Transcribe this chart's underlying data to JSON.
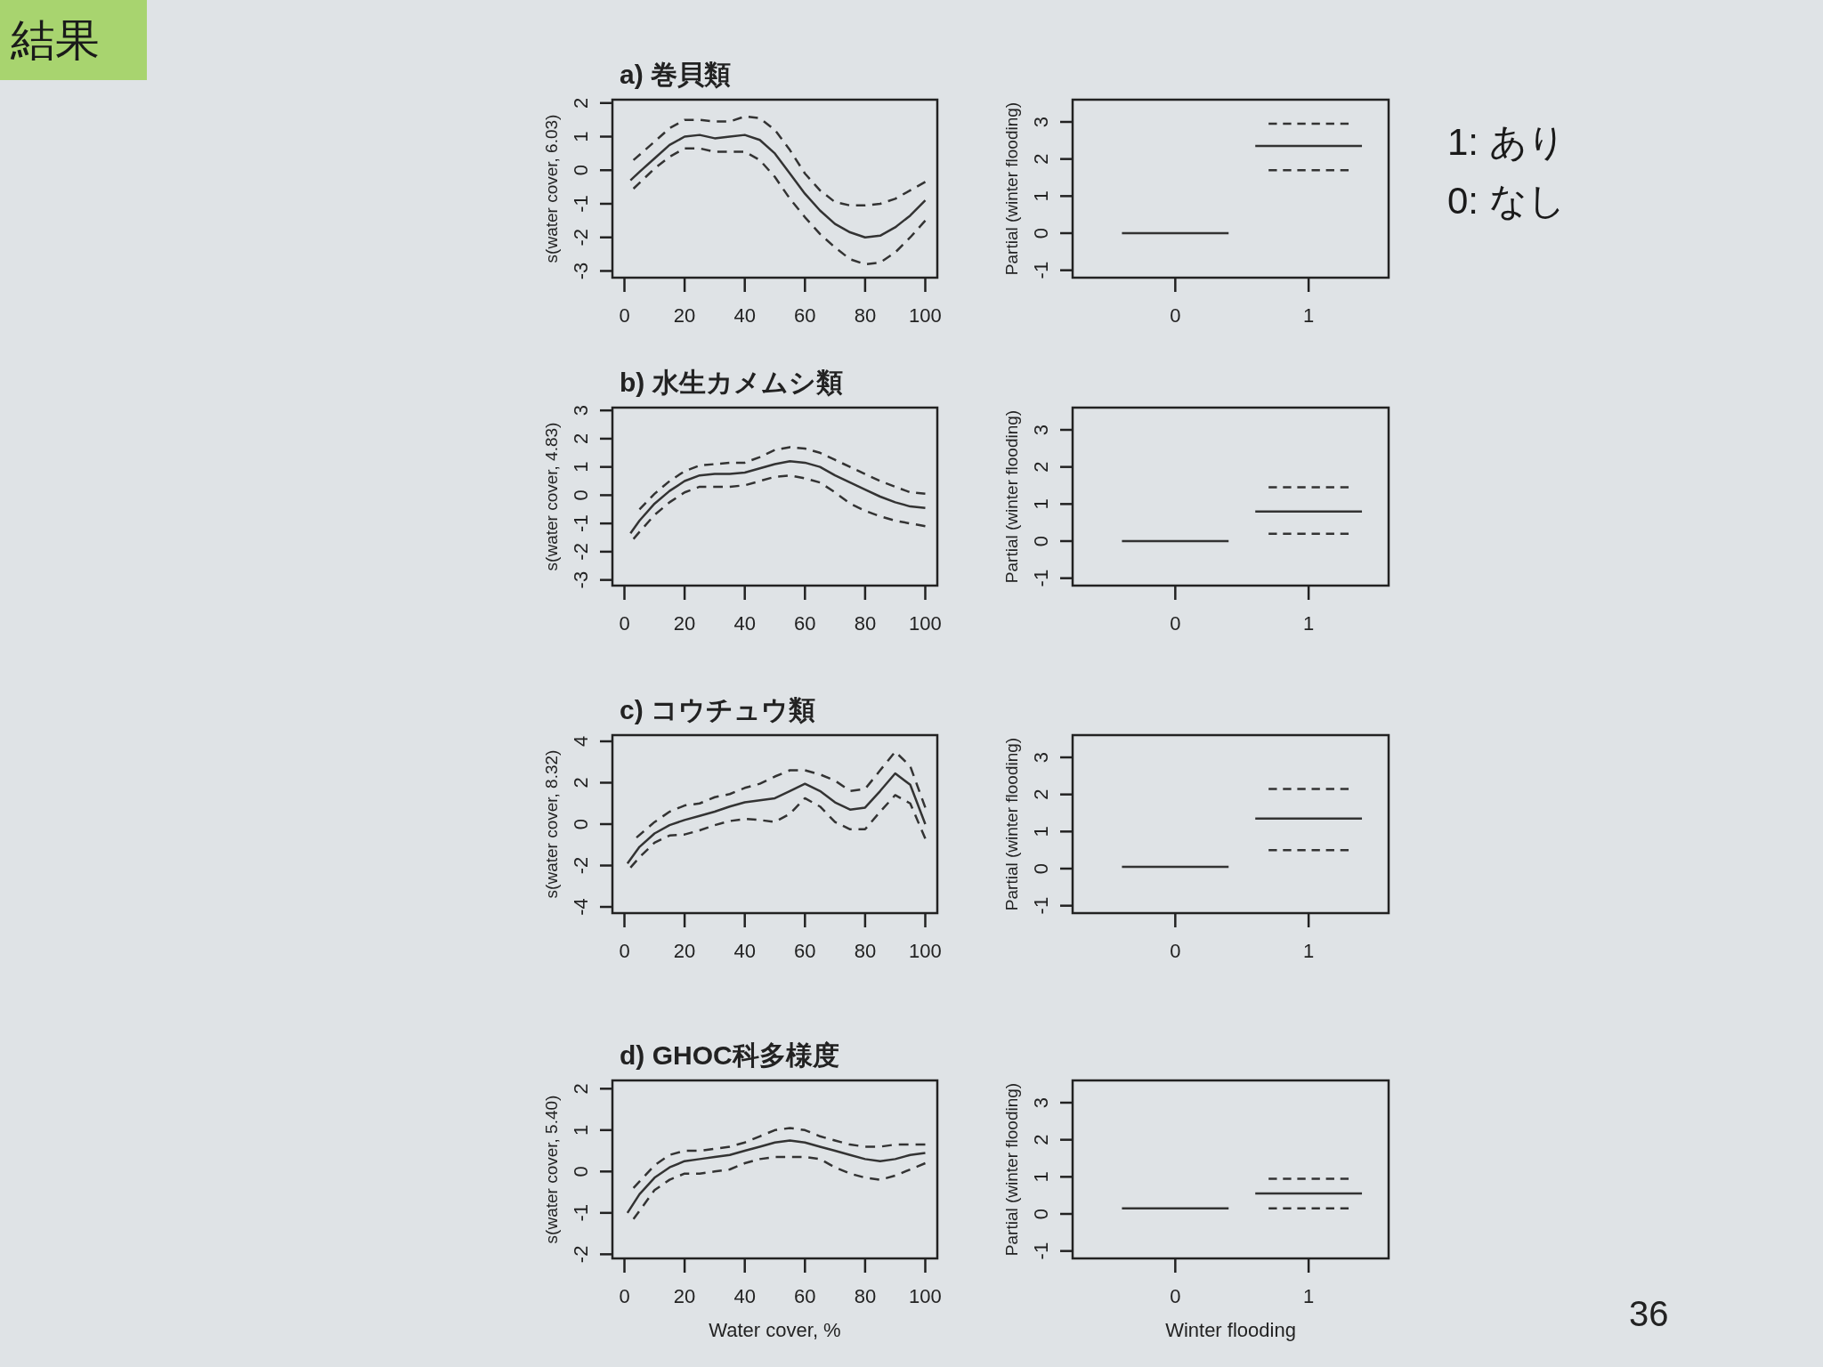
{
  "chart_data": [
    {
      "type": "line",
      "title": "a) 巻貝類",
      "ylabel": "s(water cover, 6.03)",
      "xlim": [
        -4,
        104
      ],
      "ylim": [
        -3.2,
        2.1
      ],
      "xticks": [
        0,
        20,
        40,
        60,
        80,
        100
      ],
      "yticks": [
        -3,
        -2,
        -1,
        0,
        1,
        2
      ],
      "annotations": [
        "結果"
      ],
      "series": [
        {
          "color": "#333333",
          "line_style": "solid",
          "x": [
            2,
            5,
            10,
            15,
            20,
            25,
            30,
            35,
            40,
            45,
            50,
            55,
            60,
            65,
            70,
            75,
            80,
            85,
            90,
            95,
            100
          ],
          "values": [
            -0.3,
            -0.05,
            0.35,
            0.75,
            1.0,
            1.05,
            0.95,
            1.0,
            1.05,
            0.9,
            0.5,
            -0.1,
            -0.7,
            -1.2,
            -1.6,
            -1.85,
            -2.0,
            -1.95,
            -1.7,
            -1.35,
            -0.9
          ]
        },
        {
          "color": "#333333",
          "line_style": "dashed",
          "x": [
            3,
            10,
            15,
            20,
            25,
            30,
            35,
            40,
            45,
            50,
            55,
            60,
            65,
            70,
            75,
            80,
            85,
            90,
            95,
            100
          ],
          "values": [
            0.3,
            0.85,
            1.25,
            1.5,
            1.5,
            1.45,
            1.45,
            1.6,
            1.55,
            1.2,
            0.6,
            -0.1,
            -0.6,
            -0.95,
            -1.05,
            -1.05,
            -1.0,
            -0.85,
            -0.6,
            -0.35
          ]
        },
        {
          "color": "#333333",
          "line_style": "dashed",
          "x": [
            3,
            10,
            15,
            20,
            25,
            30,
            35,
            40,
            45,
            50,
            55,
            60,
            65,
            70,
            75,
            80,
            85,
            90,
            95,
            100
          ],
          "values": [
            -0.55,
            0.05,
            0.4,
            0.65,
            0.65,
            0.55,
            0.55,
            0.55,
            0.3,
            -0.2,
            -0.85,
            -1.4,
            -1.9,
            -2.3,
            -2.65,
            -2.8,
            -2.75,
            -2.45,
            -2.0,
            -1.5
          ]
        }
      ]
    },
    {
      "type": "line",
      "ylabel": "Partial (winter flooding)",
      "xlim": [
        -0.77,
        1.6
      ],
      "xticks": [
        0,
        1
      ],
      "ylim": [
        -1.2,
        3.6
      ],
      "yticks": [
        -1,
        0,
        1,
        2,
        3
      ],
      "series": [
        {
          "color": "#333333",
          "line_style": "solid",
          "x": [
            -0.4,
            0.4
          ],
          "values": [
            0,
            0
          ]
        },
        {
          "color": "#333333",
          "line_style": "solid",
          "x": [
            0.6,
            1.4
          ],
          "values": [
            2.35,
            2.35
          ]
        },
        {
          "color": "#333333",
          "line_style": "dashed",
          "x": [
            0.7,
            1.3
          ],
          "values": [
            2.95,
            2.95
          ]
        },
        {
          "color": "#333333",
          "line_style": "dashed",
          "x": [
            0.7,
            1.3
          ],
          "values": [
            1.7,
            1.7
          ]
        }
      ],
      "annotations": [
        "1: あり",
        "0: なし"
      ]
    },
    {
      "type": "line",
      "title": "b) 水生カメムシ類",
      "ylabel": "s(water cover, 4.83)",
      "xlim": [
        -4,
        104
      ],
      "ylim": [
        -3.2,
        3.1
      ],
      "xticks": [
        0,
        20,
        40,
        60,
        80,
        100
      ],
      "yticks": [
        -3,
        -2,
        -1,
        0,
        1,
        2,
        3
      ],
      "series": [
        {
          "color": "#333333",
          "line_style": "solid",
          "x": [
            2,
            5,
            10,
            15,
            20,
            25,
            30,
            35,
            40,
            45,
            50,
            55,
            60,
            65,
            70,
            75,
            80,
            85,
            90,
            95,
            100
          ],
          "values": [
            -1.35,
            -0.9,
            -0.3,
            0.15,
            0.5,
            0.7,
            0.75,
            0.75,
            0.8,
            0.95,
            1.1,
            1.2,
            1.15,
            1.0,
            0.7,
            0.45,
            0.2,
            -0.05,
            -0.25,
            -0.4,
            -0.45
          ]
        },
        {
          "color": "#333333",
          "line_style": "dashed",
          "x": [
            5,
            10,
            15,
            20,
            25,
            30,
            35,
            40,
            45,
            50,
            55,
            60,
            65,
            70,
            75,
            80,
            85,
            90,
            95,
            100
          ],
          "values": [
            -0.5,
            0.05,
            0.5,
            0.85,
            1.05,
            1.1,
            1.15,
            1.15,
            1.35,
            1.6,
            1.7,
            1.65,
            1.5,
            1.25,
            1.0,
            0.75,
            0.5,
            0.3,
            0.1,
            0.05
          ]
        },
        {
          "color": "#333333",
          "line_style": "dashed",
          "x": [
            3,
            5,
            10,
            15,
            20,
            25,
            30,
            35,
            40,
            45,
            50,
            55,
            60,
            65,
            70,
            75,
            80,
            85,
            90,
            95,
            100
          ],
          "values": [
            -1.55,
            -1.3,
            -0.7,
            -0.25,
            0.1,
            0.3,
            0.3,
            0.3,
            0.35,
            0.5,
            0.65,
            0.7,
            0.6,
            0.45,
            0.1,
            -0.3,
            -0.55,
            -0.75,
            -0.9,
            -1.0,
            -1.1
          ]
        }
      ]
    },
    {
      "type": "line",
      "ylabel": "Partial (winter flooding)",
      "xlim": [
        -0.77,
        1.6
      ],
      "xticks": [
        0,
        1
      ],
      "ylim": [
        -1.2,
        3.6
      ],
      "yticks": [
        -1,
        0,
        1,
        2,
        3
      ],
      "series": [
        {
          "color": "#333333",
          "line_style": "solid",
          "x": [
            -0.4,
            0.4
          ],
          "values": [
            0,
            0
          ]
        },
        {
          "color": "#333333",
          "line_style": "solid",
          "x": [
            0.6,
            1.4
          ],
          "values": [
            0.8,
            0.8
          ]
        },
        {
          "color": "#333333",
          "line_style": "dashed",
          "x": [
            0.7,
            1.3
          ],
          "values": [
            1.45,
            1.45
          ]
        },
        {
          "color": "#333333",
          "line_style": "dashed",
          "x": [
            0.7,
            1.3
          ],
          "values": [
            0.2,
            0.2
          ]
        }
      ]
    },
    {
      "type": "line",
      "title": "c) コウチュウ類",
      "ylabel": "s(water cover, 8.32)",
      "xlim": [
        -4,
        104
      ],
      "ylim": [
        -4.3,
        4.3
      ],
      "xticks": [
        0,
        20,
        40,
        60,
        80,
        100
      ],
      "yticks": [
        -4,
        -2,
        0,
        2,
        4
      ],
      "series": [
        {
          "color": "#333333",
          "line_style": "solid",
          "x": [
            1,
            5,
            10,
            15,
            20,
            25,
            30,
            35,
            40,
            45,
            50,
            55,
            60,
            65,
            70,
            75,
            80,
            85,
            90,
            95,
            100
          ],
          "values": [
            -1.9,
            -1.1,
            -0.45,
            -0.05,
            0.2,
            0.4,
            0.6,
            0.85,
            1.05,
            1.15,
            1.25,
            1.6,
            1.95,
            1.6,
            1.05,
            0.7,
            0.8,
            1.6,
            2.45,
            1.9,
            0
          ]
        },
        {
          "color": "#333333",
          "line_style": "dashed",
          "x": [
            4,
            10,
            15,
            20,
            25,
            30,
            35,
            40,
            45,
            50,
            55,
            60,
            65,
            70,
            75,
            80,
            85,
            90,
            95,
            100
          ],
          "values": [
            -0.65,
            0.1,
            0.6,
            0.9,
            1.0,
            1.3,
            1.45,
            1.75,
            1.95,
            2.3,
            2.6,
            2.6,
            2.4,
            2.1,
            1.6,
            1.7,
            2.6,
            3.5,
            2.8,
            0.8
          ]
        },
        {
          "color": "#333333",
          "line_style": "dashed",
          "x": [
            2,
            5,
            10,
            15,
            20,
            25,
            30,
            35,
            40,
            45,
            50,
            55,
            60,
            65,
            70,
            75,
            80,
            85,
            90,
            95,
            100
          ],
          "values": [
            -2.1,
            -1.6,
            -0.9,
            -0.55,
            -0.5,
            -0.3,
            -0.05,
            0.15,
            0.25,
            0.2,
            0.1,
            0.5,
            1.25,
            0.85,
            0.1,
            -0.25,
            -0.25,
            0.6,
            1.4,
            1.0,
            -0.7
          ]
        }
      ]
    },
    {
      "type": "line",
      "ylabel": "Partial (winter flooding)",
      "xlim": [
        -0.77,
        1.6
      ],
      "xticks": [
        0,
        1
      ],
      "ylim": [
        -1.2,
        3.6
      ],
      "yticks": [
        -1,
        0,
        1,
        2,
        3
      ],
      "series": [
        {
          "color": "#333333",
          "line_style": "solid",
          "x": [
            -0.4,
            0.4
          ],
          "values": [
            0.05,
            0.05
          ]
        },
        {
          "color": "#333333",
          "line_style": "solid",
          "x": [
            0.6,
            1.4
          ],
          "values": [
            1.35,
            1.35
          ]
        },
        {
          "color": "#333333",
          "line_style": "dashed",
          "x": [
            0.7,
            1.3
          ],
          "values": [
            2.15,
            2.15
          ]
        },
        {
          "color": "#333333",
          "line_style": "dashed",
          "x": [
            0.7,
            1.3
          ],
          "values": [
            0.5,
            0.5
          ]
        }
      ]
    },
    {
      "type": "line",
      "title": "d) GHOC科多様度",
      "xlabel": "Water cover, %",
      "ylabel": "s(water cover, 5.40)",
      "xlim": [
        -4,
        104
      ],
      "ylim": [
        -2.1,
        2.2
      ],
      "xticks": [
        0,
        20,
        40,
        60,
        80,
        100
      ],
      "yticks": [
        -2,
        -1,
        0,
        1,
        2
      ],
      "series": [
        {
          "color": "#333333",
          "line_style": "solid",
          "x": [
            1,
            5,
            10,
            15,
            20,
            25,
            30,
            35,
            40,
            45,
            50,
            55,
            60,
            65,
            70,
            75,
            80,
            85,
            90,
            95,
            100
          ],
          "values": [
            -1.0,
            -0.55,
            -0.15,
            0.1,
            0.25,
            0.3,
            0.35,
            0.4,
            0.5,
            0.6,
            0.7,
            0.75,
            0.7,
            0.6,
            0.5,
            0.4,
            0.3,
            0.25,
            0.3,
            0.4,
            0.45
          ]
        },
        {
          "color": "#333333",
          "line_style": "dashed",
          "x": [
            3,
            10,
            15,
            20,
            25,
            30,
            35,
            40,
            45,
            50,
            55,
            60,
            65,
            70,
            75,
            80,
            85,
            90,
            95,
            100
          ],
          "values": [
            -0.4,
            0.15,
            0.4,
            0.5,
            0.5,
            0.55,
            0.6,
            0.7,
            0.85,
            1.0,
            1.05,
            1.0,
            0.85,
            0.75,
            0.65,
            0.6,
            0.6,
            0.65,
            0.65,
            0.65
          ]
        },
        {
          "color": "#333333",
          "line_style": "dashed",
          "x": [
            3,
            5,
            10,
            15,
            20,
            25,
            30,
            35,
            40,
            45,
            50,
            55,
            60,
            65,
            70,
            75,
            80,
            85,
            90,
            95,
            100
          ],
          "values": [
            -1.15,
            -0.95,
            -0.45,
            -0.2,
            -0.05,
            -0.05,
            0.0,
            0.05,
            0.2,
            0.3,
            0.35,
            0.35,
            0.35,
            0.3,
            0.1,
            -0.05,
            -0.15,
            -0.2,
            -0.1,
            0.05,
            0.2
          ]
        }
      ]
    },
    {
      "type": "line",
      "xlabel": "Winter flooding",
      "ylabel": "Partial (winter flooding)",
      "xlim": [
        -0.77,
        1.6
      ],
      "xticks": [
        0,
        1
      ],
      "ylim": [
        -1.2,
        3.6
      ],
      "yticks": [
        -1,
        0,
        1,
        2,
        3
      ],
      "series": [
        {
          "color": "#333333",
          "line_style": "solid",
          "x": [
            -0.4,
            0.4
          ],
          "values": [
            0.15,
            0.15
          ]
        },
        {
          "color": "#333333",
          "line_style": "solid",
          "x": [
            0.6,
            1.4
          ],
          "values": [
            0.55,
            0.55
          ]
        },
        {
          "color": "#333333",
          "line_style": "dashed",
          "x": [
            0.7,
            1.3
          ],
          "values": [
            0.95,
            0.95
          ]
        },
        {
          "color": "#333333",
          "line_style": "dashed",
          "x": [
            0.7,
            1.3
          ],
          "values": [
            0.15,
            0.15
          ]
        }
      ],
      "annotations": [
        "36"
      ]
    }
  ]
}
